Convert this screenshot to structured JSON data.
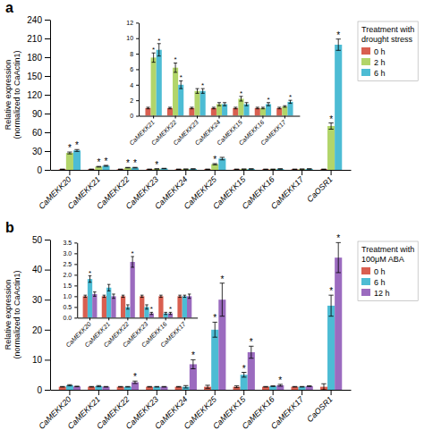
{
  "chart_data": [
    {
      "type": "bar",
      "title": "Treatment with\ndrought stress",
      "ylabel": "Relative expression\n(normalized to CaActin1)",
      "annotations": [
        "a"
      ],
      "categories": [
        "CaMEKK20",
        "CaMEKK21",
        "CaMEKK22",
        "CaMEKK23",
        "CaMEKK24",
        "CaMEKK25",
        "CaMEKK15",
        "CaMEKK16",
        "CaMEKK17",
        "CaOSR1"
      ],
      "series": [
        {
          "name": "0 h",
          "color": "#d95f50",
          "values": [
            1.0,
            1.0,
            1.0,
            1.0,
            1.0,
            1.0,
            1.0,
            1.0,
            1.0,
            1.0
          ],
          "errors": [
            0.2,
            0.1,
            0.1,
            0.1,
            0.1,
            0.1,
            0.1,
            0.1,
            0.1,
            0.2
          ],
          "significant": [
            false,
            false,
            false,
            false,
            false,
            false,
            false,
            false,
            false,
            false
          ]
        },
        {
          "name": "2 h",
          "color": "#b2d56a",
          "values": [
            27.0,
            5.0,
            3.5,
            1.5,
            1.2,
            9.0,
            1.2,
            1.0,
            1.2,
            70.0
          ],
          "errors": [
            1.5,
            0.5,
            0.4,
            0.2,
            0.1,
            1.0,
            0.1,
            0.1,
            0.1,
            5.0
          ],
          "significant": [
            true,
            true,
            true,
            true,
            false,
            true,
            false,
            false,
            false,
            true
          ]
        },
        {
          "name": "6 h",
          "color": "#4dbcd4",
          "values": [
            31.0,
            6.5,
            3.5,
            2.2,
            1.5,
            18.0,
            1.5,
            1.5,
            1.5,
            200.0
          ],
          "errors": [
            1.5,
            0.7,
            0.5,
            0.3,
            0.2,
            2.0,
            0.2,
            0.2,
            0.2,
            9.0
          ],
          "significant": [
            true,
            true,
            true,
            false,
            false,
            false,
            false,
            false,
            false,
            true
          ]
        }
      ],
      "ylim": [
        0,
        240
      ],
      "yticks": [
        0,
        30,
        60,
        90,
        120,
        150,
        180,
        210,
        240
      ],
      "grid": false,
      "significance_label": "*"
    },
    {
      "type": "bar",
      "categories": [
        "CaMEKK21",
        "CaMEKK22",
        "CaMEKK23",
        "CaMEKK24",
        "CaMEKK15",
        "CaMEKK16",
        "CaMEKK17"
      ],
      "series": [
        {
          "color": "#d95f50",
          "values": [
            1.0,
            1.0,
            1.0,
            1.0,
            1.0,
            1.0,
            1.0
          ],
          "errors": [
            0.1,
            0.1,
            0.1,
            0.1,
            0.1,
            0.1,
            0.1
          ],
          "significant": [
            false,
            false,
            false,
            false,
            false,
            false,
            false
          ]
        },
        {
          "color": "#b2d56a",
          "values": [
            7.5,
            6.2,
            3.2,
            1.5,
            2.2,
            1.0,
            1.2
          ],
          "errors": [
            0.6,
            0.6,
            0.3,
            0.2,
            0.3,
            0.1,
            0.1
          ],
          "significant": [
            true,
            true,
            false,
            false,
            true,
            false,
            false
          ]
        },
        {
          "color": "#4dbcd4",
          "values": [
            8.5,
            4.0,
            3.2,
            1.5,
            1.5,
            1.5,
            1.8
          ],
          "errors": [
            0.8,
            0.5,
            0.3,
            0.2,
            0.2,
            0.2,
            0.2
          ],
          "significant": [
            true,
            true,
            true,
            false,
            false,
            true,
            true
          ]
        }
      ],
      "ylim": [
        0,
        12
      ],
      "yticks": [
        0,
        2,
        4,
        6,
        8,
        10,
        12
      ],
      "grid": false,
      "significance_label": "*"
    },
    {
      "type": "bar",
      "title": "Treatment with\n100μM ABA",
      "ylabel": "Relative expression\n(normalized to CaActin1)",
      "annotations": [
        "b"
      ],
      "categories": [
        "CaMEKK20",
        "CaMEKK21",
        "CaMEKK22",
        "CaMEKK23",
        "CaMEKK24",
        "CaMEKK25",
        "CaMEKK15",
        "CaMEKK16",
        "CaMEKK17",
        "CaOSR1"
      ],
      "series": [
        {
          "name": "0 h",
          "color": "#d95f50",
          "values": [
            1.0,
            1.0,
            1.0,
            1.0,
            1.0,
            1.0,
            1.0,
            1.0,
            1.0,
            1.0
          ],
          "errors": [
            0.1,
            0.1,
            0.1,
            0.1,
            0.1,
            0.5,
            0.3,
            0.1,
            0.1,
            1.0
          ],
          "significant": [
            false,
            false,
            false,
            false,
            false,
            false,
            false,
            false,
            false,
            false
          ]
        },
        {
          "name": "6 h",
          "color": "#4dbcd4",
          "values": [
            1.5,
            1.2,
            1.0,
            1.0,
            1.0,
            20.0,
            5.0,
            1.2,
            1.0,
            28.0
          ],
          "errors": [
            0.2,
            0.2,
            0.1,
            0.1,
            0.4,
            2.5,
            0.8,
            0.1,
            0.1,
            3.5
          ],
          "significant": [
            false,
            false,
            false,
            false,
            false,
            true,
            true,
            false,
            false,
            true
          ]
        },
        {
          "name": "12 h",
          "color": "#9b6bbf",
          "values": [
            1.1,
            1.0,
            2.5,
            1.0,
            8.5,
            30.0,
            12.5,
            1.5,
            1.2,
            44.0
          ],
          "errors": [
            0.1,
            0.1,
            0.4,
            0.1,
            1.5,
            5.5,
            2.0,
            0.3,
            0.1,
            5.0
          ],
          "significant": [
            false,
            false,
            true,
            false,
            true,
            true,
            true,
            true,
            false,
            true
          ]
        }
      ],
      "ylim": [
        0,
        50
      ],
      "yticks": [
        0,
        10,
        20,
        30,
        40,
        50
      ],
      "grid": false,
      "significance_label": "*"
    },
    {
      "type": "bar",
      "categories": [
        "CaMEKK20",
        "CaMEKK21",
        "CaMEKK22",
        "CaMEKK23",
        "CaMEKK16",
        "CaMEKK17"
      ],
      "series": [
        {
          "color": "#d95f50",
          "values": [
            1.0,
            1.0,
            1.0,
            1.0,
            1.0,
            1.0
          ],
          "errors": [
            0.05,
            0.05,
            0.05,
            0.05,
            0.05,
            0.05
          ],
          "significant": [
            false,
            false,
            false,
            false,
            false,
            false
          ]
        },
        {
          "color": "#4dbcd4",
          "values": [
            1.8,
            1.4,
            0.5,
            0.5,
            0.2,
            1.0
          ],
          "errors": [
            0.15,
            0.15,
            0.1,
            0.1,
            0.05,
            0.05
          ],
          "significant": [
            true,
            false,
            false,
            false,
            false,
            false
          ]
        },
        {
          "color": "#9b6bbf",
          "values": [
            1.1,
            1.0,
            2.6,
            0.2,
            0.2,
            1.0
          ],
          "errors": [
            0.1,
            0.1,
            0.25,
            0.05,
            0.05,
            0.1
          ],
          "significant": [
            false,
            false,
            true,
            true,
            true,
            false
          ]
        }
      ],
      "ylim": [
        0,
        3.5
      ],
      "yticks": [
        {
          "value": 0,
          "label": "0.0"
        },
        0.5,
        {
          "value": 1,
          "label": "1.0"
        },
        1.5,
        {
          "value": 2,
          "label": "2.0"
        },
        2.5,
        {
          "value": 3,
          "label": "3.0"
        },
        3.5
      ],
      "grid": false,
      "significance_label": "*"
    }
  ]
}
